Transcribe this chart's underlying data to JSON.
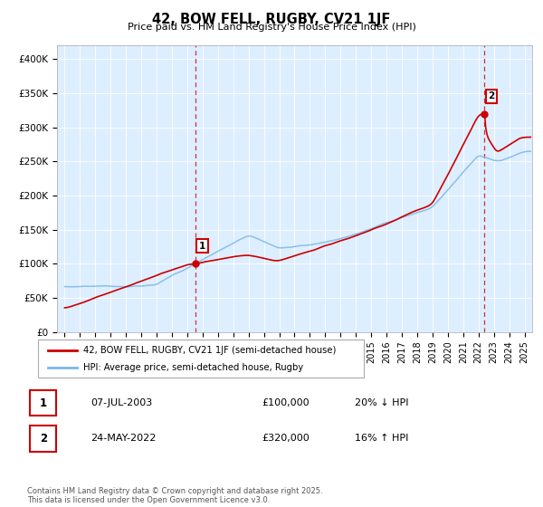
{
  "title": "42, BOW FELL, RUGBY, CV21 1JF",
  "subtitle": "Price paid vs. HM Land Registry's House Price Index (HPI)",
  "ylabel_ticks": [
    "£0",
    "£50K",
    "£100K",
    "£150K",
    "£200K",
    "£250K",
    "£300K",
    "£350K",
    "£400K"
  ],
  "ytick_values": [
    0,
    50000,
    100000,
    150000,
    200000,
    250000,
    300000,
    350000,
    400000
  ],
  "ylim": [
    0,
    420000
  ],
  "xlim_start": 1994.5,
  "xlim_end": 2025.5,
  "xticks": [
    1995,
    1996,
    1997,
    1998,
    1999,
    2000,
    2001,
    2002,
    2003,
    2004,
    2005,
    2006,
    2007,
    2008,
    2009,
    2010,
    2011,
    2012,
    2013,
    2014,
    2015,
    2016,
    2017,
    2018,
    2019,
    2020,
    2021,
    2022,
    2023,
    2024,
    2025
  ],
  "sale1_x": 2003.52,
  "sale1_y": 100000,
  "sale1_label": "1",
  "sale2_x": 2022.39,
  "sale2_y": 320000,
  "sale2_label": "2",
  "hpi_color": "#7ab8e8",
  "price_color": "#cc0000",
  "vline_color": "#cc0000",
  "annotation_box_color": "#cc0000",
  "legend1": "42, BOW FELL, RUGBY, CV21 1JF (semi-detached house)",
  "legend2": "HPI: Average price, semi-detached house, Rugby",
  "table_row1": [
    "1",
    "07-JUL-2003",
    "£100,000",
    "20% ↓ HPI"
  ],
  "table_row2": [
    "2",
    "24-MAY-2022",
    "£320,000",
    "16% ↑ HPI"
  ],
  "footer": "Contains HM Land Registry data © Crown copyright and database right 2025.\nThis data is licensed under the Open Government Licence v3.0.",
  "background_color": "#ddeeff"
}
